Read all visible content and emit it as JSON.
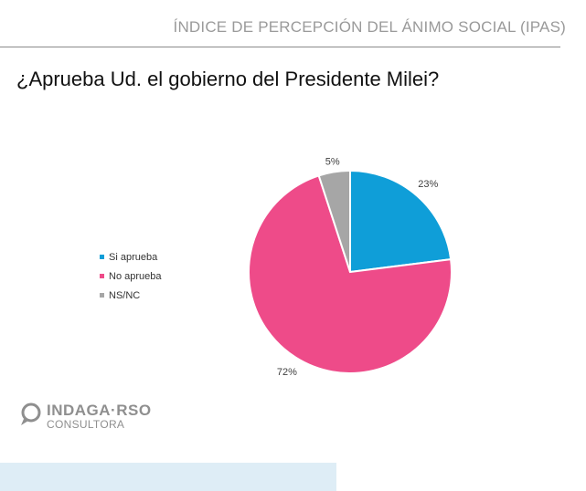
{
  "header": {
    "title": "ÍNDICE DE PERCEPCIÓN DEL ÁNIMO SOCIAL (IPAS)"
  },
  "question": "¿Aprueba Ud. el gobierno del Presidente Milei?",
  "logo": {
    "brand": "INDAGA·RSO",
    "sub": "CONSULTORA"
  },
  "chart_data": {
    "type": "pie",
    "categories": [
      "Si aprueba",
      "No aprueba",
      "NS/NC"
    ],
    "values": [
      23,
      72,
      5
    ],
    "labels": [
      "23%",
      "72%",
      "5%"
    ],
    "colors": [
      "#0f9ed8",
      "#ee4b89",
      "#a6a6a6"
    ],
    "legend_position": "left",
    "start_angle": "12 o'clock, clockwise"
  }
}
